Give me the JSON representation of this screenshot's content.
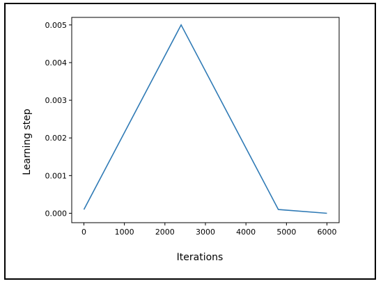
{
  "chart_data": {
    "type": "line",
    "title": "",
    "xlabel": "Iterations",
    "ylabel": "Learning step",
    "xlim": [
      -300,
      6300
    ],
    "ylim": [
      -0.00025,
      0.0052
    ],
    "grid": false,
    "x_ticks": [
      0,
      1000,
      2000,
      3000,
      4000,
      5000,
      6000
    ],
    "x_tick_labels": [
      "0",
      "1000",
      "2000",
      "3000",
      "4000",
      "5000",
      "6000"
    ],
    "y_ticks": [
      0,
      0.001,
      0.002,
      0.003,
      0.004,
      0.005
    ],
    "y_tick_labels": [
      "0.000",
      "0.001",
      "0.002",
      "0.003",
      "0.004",
      "0.005"
    ],
    "series": [
      {
        "color": "#2f7ab5",
        "x": [
          0,
          2400,
          4800,
          6000
        ],
        "y": [
          0.0001,
          0.005,
          0.0001,
          0.0
        ]
      }
    ]
  }
}
